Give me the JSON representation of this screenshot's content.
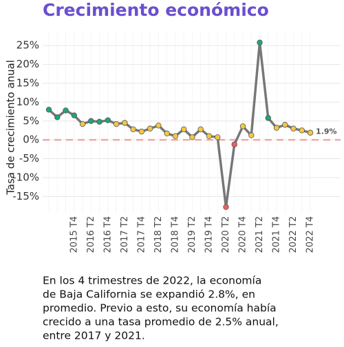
{
  "chart_data": {
    "type": "line",
    "title": "Crecimiento económico",
    "y_label": "Tasa de crecimiento anual",
    "categories": [
      null,
      null,
      null,
      "2015 T4",
      null,
      "2016 T2",
      null,
      "2016 T4",
      null,
      "2017 T2",
      null,
      "2017 T4",
      null,
      "2018 T2",
      null,
      "2018 T4",
      null,
      "2019 T2",
      null,
      "2019 T4",
      null,
      "2020 T2",
      null,
      "2020 T4",
      null,
      "2021 T2",
      null,
      "2021 T4",
      null,
      "2022 T2",
      null,
      "2022 T4"
    ],
    "values": [
      8,
      6,
      7.8,
      6.5,
      4.2,
      5,
      4.8,
      5.2,
      4.2,
      4.5,
      2.8,
      2.2,
      3,
      3.8,
      1.7,
      1,
      2.8,
      0.7,
      2.8,
      1,
      0.7,
      -17.8,
      -1.2,
      3.6,
      1.2,
      25.8,
      5.8,
      3.2,
      4,
      3,
      2.5,
      1.9
    ],
    "point_colors": [
      "#1fa57a",
      "#1fa57a",
      "#1fa57a",
      "#1fa57a",
      "#f2c744",
      "#1fa57a",
      "#1fa57a",
      "#1fa57a",
      "#f2c744",
      "#f2c744",
      "#f2c744",
      "#f2c744",
      "#f2c744",
      "#f2c744",
      "#f2c744",
      "#f2c744",
      "#f2c744",
      "#f2c744",
      "#f2c744",
      "#f2c744",
      "#f2c744",
      "#ef5f5f",
      "#ef5f5f",
      "#f2c744",
      "#f2c744",
      "#1fa57a",
      "#1fa57a",
      "#f2c744",
      "#f2c744",
      "#f2c744",
      "#f2c744",
      "#f2c744"
    ],
    "color": "#777777",
    "end_label": "1.9%",
    "ylim": [
      -19.5,
      28.5
    ],
    "yticks": [
      {
        "value": -15,
        "label": "-15%"
      },
      {
        "value": -10,
        "label": "-10%"
      },
      {
        "value": -5,
        "label": "-5%"
      },
      {
        "value": 0,
        "label": "0%"
      },
      {
        "value": 5,
        "label": "5%"
      },
      {
        "value": 10,
        "label": "10%"
      },
      {
        "value": 15,
        "label": "15%"
      },
      {
        "value": 20,
        "label": "20%"
      },
      {
        "value": 25,
        "label": "25%"
      }
    ],
    "grid": true,
    "reference_line": 0,
    "caption": [
      "En los 4 trimestres de 2022, la economía",
      "de Baja California se expandió 2.8%, en",
      "promedio. Previo a esto, su economía había",
      "crecido a una tasa promedio de 2.5% anual,",
      "entre 2017 y 2021."
    ]
  }
}
